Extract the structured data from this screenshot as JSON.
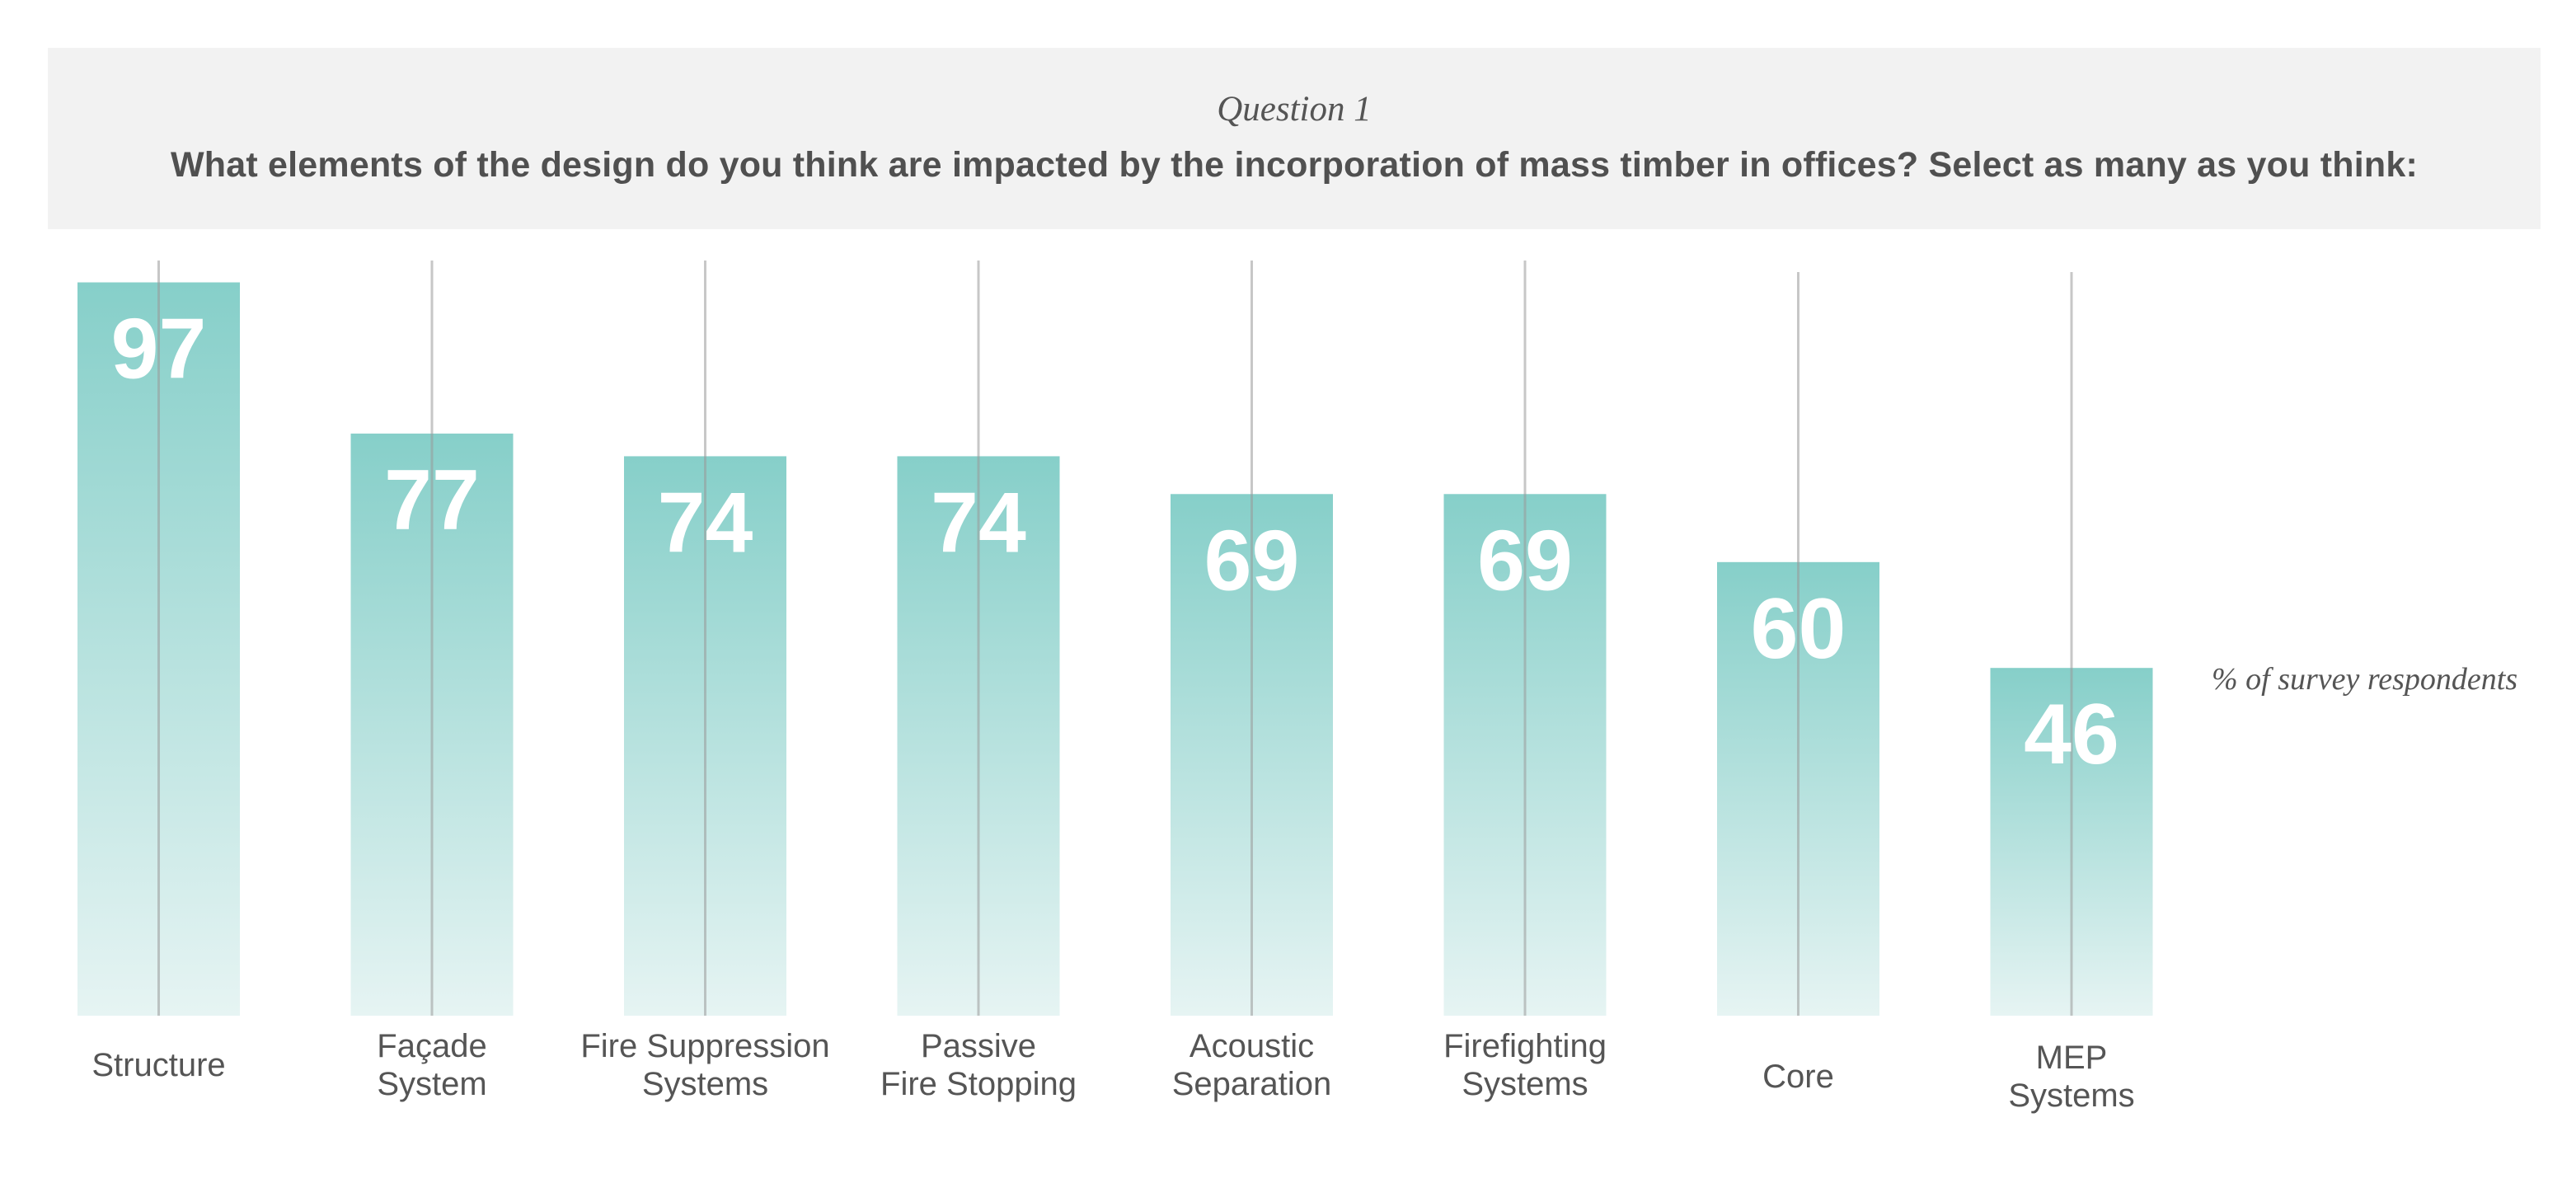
{
  "header": {
    "question_label": "Question 1",
    "question_text": "What elements of the design do you think are impacted by the incorporation of mass timber in offices? Select as many as you think:"
  },
  "colors": {
    "bar_top": "#86cfc9",
    "bar_bottom": "#e6f4f3",
    "header_bg": "#f2f2f2",
    "text": "#555555",
    "stem": "#999999"
  },
  "chart_data": {
    "type": "bar",
    "categories": [
      [
        "Structure"
      ],
      [
        "Façade",
        "System"
      ],
      [
        "Fire Suppression",
        "Systems"
      ],
      [
        "Passive",
        "Fire Stopping"
      ],
      [
        "Acoustic",
        "Separation"
      ],
      [
        "Firefighting",
        "Systems"
      ],
      [
        "Core"
      ],
      [
        "MEP",
        "Systems"
      ]
    ],
    "values": [
      97,
      77,
      74,
      74,
      69,
      69,
      60,
      46
    ],
    "unit_label": "% of survey respondents",
    "ylim": [
      0,
      100
    ],
    "grid": false,
    "legend": "none"
  }
}
